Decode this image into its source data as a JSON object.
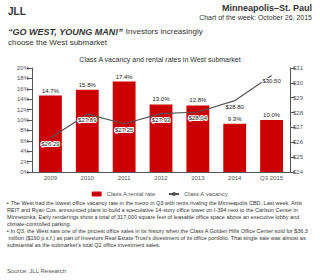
{
  "chart_data": {
    "type": "bar",
    "title": "Class A vacancy and rental rates in West submarket",
    "annotations": [
      "JLL",
      "Minneapolis–St. Paul",
      "Chart of the week: October 26, 2015",
      "“GO WEST, YOUNG MAN!”",
      "Investors increasingly",
      "choose the West submarket",
      "▪ The West had the lowest office vacancy rate in the metro in Q3 with rents rivaling the Minneapolis CBD. Last week, Artis REIT and Ryan Cos. announced plans to build a speculative 14-story office tower on I-394 next to the Carlson Center in Minnetonka. Early renderings show a total of 317,000 square feet of leasable office space above an executive lobby and climate-controlled parking.",
      "▪ In Q3, the West saw one of the priciest office sales in its history when the Class A Golden Hills Office Center sold for $36.3 million ($190 p.s.f.) as part of Investors Real Estate Trust’s divestment of its office portfolio. That single sale was almost as substantial as the submarket’s total Q2 office investment sales.",
      "Source: JLL Research"
    ],
    "categories": [
      "2009",
      "2010",
      "2011",
      "2012",
      "2013",
      "2014",
      "Q3 2015"
    ],
    "series": [
      {
        "name": "Class A rental rate",
        "type": "bar",
        "color": "#cc0000",
        "values": [
          0.147,
          0.158,
          0.174,
          0.13,
          0.128,
          0.093,
          0.1
        ],
        "value_labels": [
          "14.7%",
          "15.8%",
          "17.4%",
          "13.0%",
          "12.8%",
          "9.3%",
          "10.0%"
        ]
      },
      {
        "name": "Class A vacancy",
        "type": "line",
        "axis": "y2",
        "color": "#555555",
        "values": [
          26.29,
          27.89,
          27.25,
          27.93,
          28.04,
          28.8,
          30.5
        ],
        "value_labels": [
          "$26.29",
          "$27.89",
          "$27.25",
          "$27.93",
          "$28.04",
          "$28.80",
          "$30.50"
        ]
      }
    ],
    "ylim": [
      0.0,
      0.2
    ],
    "yticks": [
      {
        "value": 0.0,
        "label": "0%"
      },
      {
        "value": 0.02,
        "label": "2%"
      },
      {
        "value": 0.04,
        "label": "4%"
      },
      {
        "value": 0.06,
        "label": "6%"
      },
      {
        "value": 0.08,
        "label": "8%"
      },
      {
        "value": 0.1,
        "label": "10%"
      },
      {
        "value": 0.12,
        "label": "12%"
      },
      {
        "value": 0.14,
        "label": "14%"
      },
      {
        "value": 0.16,
        "label": "16%"
      },
      {
        "value": 0.18,
        "label": "18%"
      },
      {
        "value": 0.2,
        "label": "20%"
      }
    ],
    "y2lim": [
      24,
      31
    ],
    "y2ticks": [
      {
        "value": 24,
        "label": "$24"
      },
      {
        "value": 25,
        "label": "$25"
      },
      {
        "value": 26,
        "label": "$26"
      },
      {
        "value": 27,
        "label": "$27"
      },
      {
        "value": 28,
        "label": "$28"
      },
      {
        "value": 29,
        "label": "$29"
      },
      {
        "value": 30,
        "label": "$30"
      },
      {
        "value": 31,
        "label": "$31"
      }
    ],
    "grid": false,
    "legend": "bottom",
    "data_labels": true
  }
}
